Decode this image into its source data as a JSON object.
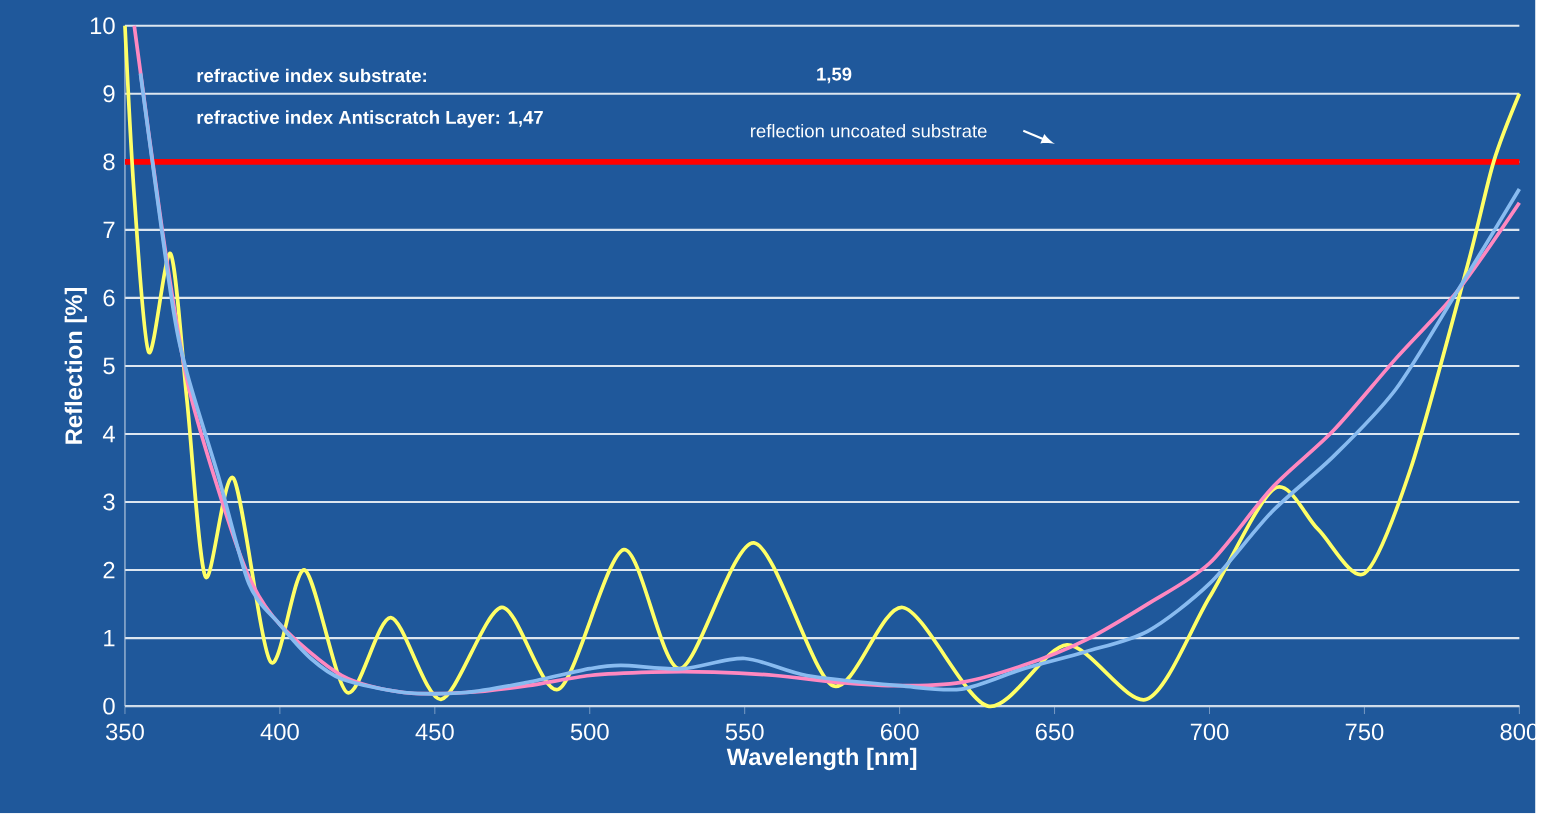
{
  "chart_data": {
    "type": "line",
    "xlabel": "Wavelength [nm]",
    "ylabel": "Reflection [%]",
    "xlim": [
      350,
      800
    ],
    "ylim": [
      0,
      10
    ],
    "xticks": [
      350,
      400,
      450,
      500,
      550,
      600,
      650,
      700,
      750,
      800
    ],
    "yticks": [
      0,
      1,
      2,
      3,
      4,
      5,
      6,
      7,
      8,
      9,
      10
    ],
    "grid": "y",
    "annotations": [
      "refractive index substrate:",
      "1,59",
      "refractive index Antiscratch Layer: 1,47"
    ],
    "ref_lines": [
      {
        "axis": "y",
        "value": 8,
        "label": "reflection uncoated substrate",
        "color": "#ff0000"
      }
    ],
    "series": [
      {
        "color": "#ffff66",
        "x": [
          350,
          353,
          357.7,
          364.7,
          370,
          376,
          385,
          397,
          408,
          421.7,
          435.8,
          452,
          471.6,
          490,
          511,
          529,
          553,
          578.5,
          601,
          628.5,
          654,
          679.7,
          700,
          721,
          735,
          750,
          765,
          783.4,
          791.7,
          800
        ],
        "values": [
          10,
          7.5,
          5.2,
          6.65,
          4.5,
          1.9,
          3.35,
          0.65,
          2.0,
          0.2,
          1.3,
          0.1,
          1.45,
          0.25,
          2.3,
          0.55,
          2.4,
          0.3,
          1.45,
          0.0,
          0.9,
          0.1,
          1.6,
          3.2,
          2.6,
          1.95,
          3.5,
          6.5,
          8.0,
          9.0
        ]
      },
      {
        "color": "#ff88c0",
        "x": [
          353,
          362,
          370,
          380,
          390,
          400,
          420,
          440,
          460,
          480,
          500,
          520,
          540,
          560,
          580,
          600,
          620,
          640,
          660,
          680,
          700,
          720,
          740,
          760,
          780,
          800
        ],
        "values": [
          10,
          7.0,
          4.8,
          3.2,
          1.9,
          1.2,
          0.45,
          0.2,
          0.2,
          0.3,
          0.45,
          0.5,
          0.5,
          0.45,
          0.35,
          0.3,
          0.35,
          0.6,
          0.97,
          1.5,
          2.1,
          3.2,
          4.05,
          5.1,
          6.1,
          7.4
        ]
      },
      {
        "color": "#88bbf0",
        "x": [
          355,
          365,
          370,
          380,
          390,
          400,
          410,
          420,
          440,
          460,
          480,
          500,
          510,
          530,
          550,
          570,
          600,
          620,
          640,
          660,
          680,
          700,
          720,
          740,
          760,
          780,
          800
        ],
        "values": [
          9.3,
          6.0,
          4.9,
          3.4,
          1.8,
          1.2,
          0.7,
          0.4,
          0.2,
          0.2,
          0.35,
          0.55,
          0.6,
          0.55,
          0.7,
          0.45,
          0.3,
          0.25,
          0.55,
          0.8,
          1.1,
          1.8,
          2.85,
          3.67,
          4.65,
          6.1,
          7.6
        ]
      }
    ]
  }
}
